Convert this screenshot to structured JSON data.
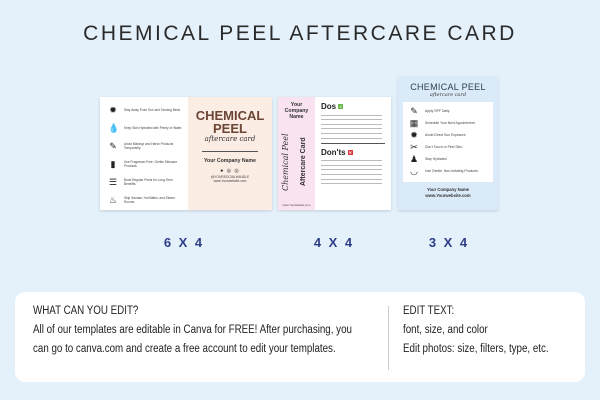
{
  "title": "CHEMICAL PEEL AFTERCARE CARD",
  "cards": {
    "c6": {
      "size": "6 X 4",
      "tips": [
        {
          "icon": "sun-icon",
          "text": "Stay Away From Sun and Tanning Beds."
        },
        {
          "icon": "water-drop-icon",
          "text": "Keep Skin Hydrated with Plenty of Water."
        },
        {
          "icon": "makeup-icon",
          "text": "Avoid Makeup and Harsh Products Temporarily."
        },
        {
          "icon": "bottle-icon",
          "text": "Use Fragrance-Free, Gentle Skincare Products."
        },
        {
          "icon": "book-icon",
          "text": "Book Regular Peels for Long-Term Benefits."
        },
        {
          "icon": "bath-icon",
          "text": "Skip Saunas, Hot Baths, and Steam Rooms."
        }
      ],
      "heading1": "CHEMICAL",
      "heading2": "PEEL",
      "script": "aftercare card",
      "company": "Your Company Name",
      "social": "● ◎ ◎",
      "handle": "@YOURSOCIALHANDLE",
      "website": "www.Yourwebsite.com"
    },
    "c4": {
      "size": "4 X 4",
      "company": "Your Company Name",
      "script": "Chemical Peel",
      "subtitle": "Aftercare Card",
      "website": "www.Yourwebsite.com",
      "dos": "Dos",
      "donts": "Don'ts"
    },
    "c3": {
      "size": "3 X 4",
      "heading": "CHEMICAL PEEL",
      "script": "aftercare card",
      "tips": [
        {
          "icon": "sunscreen-icon",
          "text": "Apply SPF Daily."
        },
        {
          "icon": "calendar-icon",
          "text": "Schedule Your Next Appointment."
        },
        {
          "icon": "sun-icon",
          "text": "Avoid Direct Sun Exposure."
        },
        {
          "icon": "tweezers-icon",
          "text": "Don't Touch or Peel Skin."
        },
        {
          "icon": "water-icon",
          "text": "Stay Hydrated."
        },
        {
          "icon": "bowl-icon",
          "text": "Use Gentle, Non-Irritating Products."
        }
      ],
      "company": "Your Company Name",
      "website": "www.Yourwebsite.com"
    }
  },
  "info": {
    "left_heading": "WHAT CAN YOU EDIT?",
    "left_line1": "All of our templates are editable in Canva for FREE! After purchasing, you",
    "left_line2": "can go to canva.com and create a free account to edit your templates.",
    "right_heading": "EDIT TEXT:",
    "right_line1": "font, size, and color",
    "right_line2": "Edit photos: size, filters, type, etc."
  },
  "colors": {
    "background": "#e4f1fb",
    "size_label": "#2c3f86",
    "peel_brown": "#6b4535",
    "dos_green": "#6bb84a",
    "donts_red": "#d9363e"
  }
}
